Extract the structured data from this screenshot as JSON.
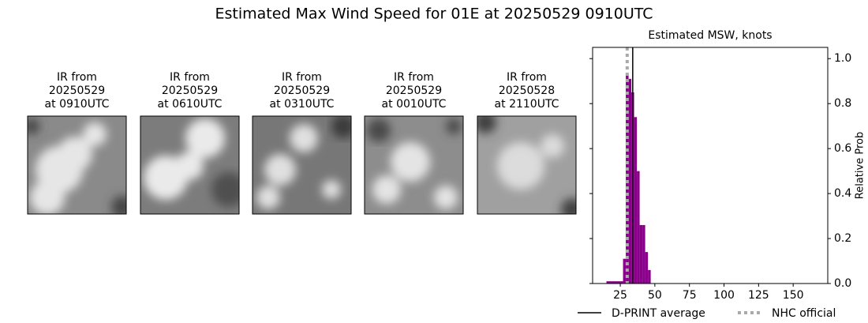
{
  "title": "Estimated Max Wind Speed for 01E at 20250529 0910UTC",
  "panels": [
    {
      "lines": [
        "IR from",
        "20250529",
        "at 0910UTC"
      ]
    },
    {
      "lines": [
        "IR from",
        "20250529",
        "at 0610UTC"
      ]
    },
    {
      "lines": [
        "IR from",
        "20250529",
        "at 0310UTC"
      ]
    },
    {
      "lines": [
        "IR from",
        "20250529",
        "at 0010UTC"
      ]
    },
    {
      "lines": [
        "IR from",
        "20250528",
        "at 2110UTC"
      ]
    }
  ],
  "chart_data": {
    "type": "histogram",
    "title": "Estimated MSW, knots",
    "y_label": "Relative Prob",
    "color": "#8b008b",
    "bins": [
      15,
      17,
      19,
      21,
      23,
      25,
      27,
      29,
      31,
      33,
      35,
      37,
      39,
      41,
      43,
      45,
      47
    ],
    "values": [
      0.01,
      0.01,
      0.01,
      0.01,
      0.01,
      0.01,
      0.11,
      0.93,
      0.91,
      0.85,
      0.74,
      0.5,
      0.26,
      0.26,
      0.14,
      0.06
    ],
    "xlim": [
      5,
      175
    ],
    "xticks": [
      25,
      50,
      75,
      100,
      125,
      150
    ],
    "ylim": [
      0,
      1.05
    ],
    "yticks": [
      {
        "value": 0,
        "label": "0.0"
      },
      0.2,
      0.4,
      0.6,
      0.8,
      {
        "value": 1,
        "label": "1.0"
      }
    ],
    "lines": [
      {
        "name": "D-PRINT average",
        "value": 34,
        "color": "#000000",
        "style": "solid"
      },
      {
        "name": "NHC official",
        "value": 30,
        "color": "#aaaaaa",
        "style": "dotted"
      }
    ]
  }
}
